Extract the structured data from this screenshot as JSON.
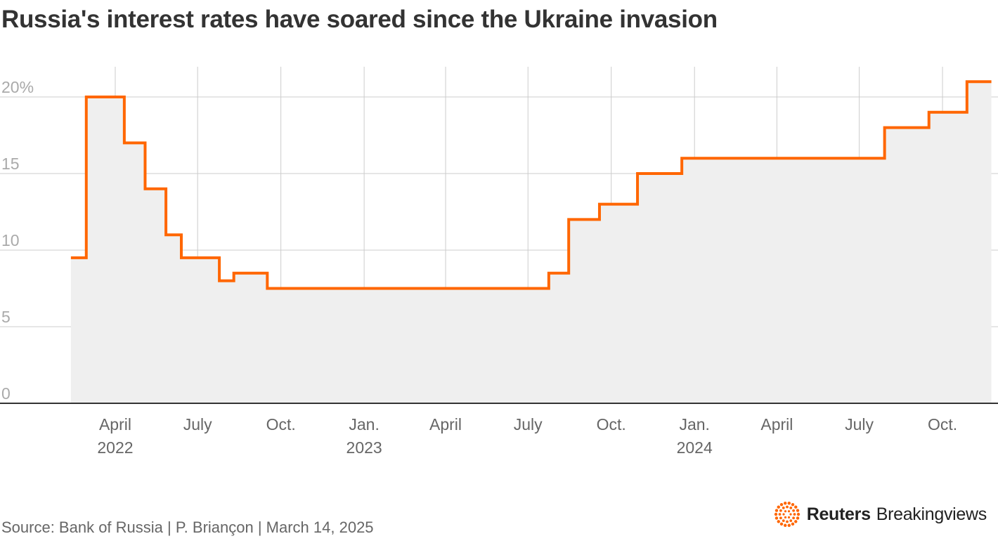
{
  "title": "Russia's interest rates have soared since the Ukraine invasion",
  "source": "Source: Bank of Russia | P. Briançon | March 14, 2025",
  "brand": {
    "name": "Reuters",
    "sub": "Breakingviews",
    "logo_icon": "reuters-dot-ring-icon"
  },
  "colors": {
    "line": "#ff6600",
    "fill": "#efefef",
    "grid": "#cccccc",
    "axis": "#333333"
  },
  "chart_data": {
    "type": "line",
    "step": true,
    "area_fill": true,
    "title": "Russia's interest rates have soared since the Ukraine invasion",
    "xlabel": "",
    "ylabel": "",
    "ylim": [
      0,
      20
    ],
    "xlim": [
      "2022-02-01",
      "2024-11-15"
    ],
    "grid": true,
    "y_ticks": [
      {
        "value": 0,
        "label": "0"
      },
      {
        "value": 5,
        "label": "5"
      },
      {
        "value": 10,
        "label": "10"
      },
      {
        "value": 15,
        "label": "15"
      },
      {
        "value": 20,
        "label": "20%"
      }
    ],
    "x_ticks": [
      {
        "date": "2022-04-01",
        "label": "April",
        "sublabel": "2022"
      },
      {
        "date": "2022-07-01",
        "label": "July",
        "sublabel": ""
      },
      {
        "date": "2022-10-01",
        "label": "Oct.",
        "sublabel": ""
      },
      {
        "date": "2023-01-01",
        "label": "Jan.",
        "sublabel": "2023"
      },
      {
        "date": "2023-04-01",
        "label": "April",
        "sublabel": ""
      },
      {
        "date": "2023-07-01",
        "label": "July",
        "sublabel": ""
      },
      {
        "date": "2023-10-01",
        "label": "Oct.",
        "sublabel": ""
      },
      {
        "date": "2024-01-01",
        "label": "Jan.",
        "sublabel": "2024"
      },
      {
        "date": "2024-04-01",
        "label": "April",
        "sublabel": ""
      },
      {
        "date": "2024-07-01",
        "label": "July",
        "sublabel": ""
      },
      {
        "date": "2024-10-01",
        "label": "Oct.",
        "sublabel": ""
      }
    ],
    "series": [
      {
        "points": [
          {
            "x": "2022-02-11",
            "y": 9.5
          },
          {
            "x": "2022-02-28",
            "y": 20
          },
          {
            "x": "2022-04-11",
            "y": 17
          },
          {
            "x": "2022-05-04",
            "y": 14
          },
          {
            "x": "2022-05-27",
            "y": 11
          },
          {
            "x": "2022-06-13",
            "y": 9.5
          },
          {
            "x": "2022-07-25",
            "y": 8
          },
          {
            "x": "2022-08-10",
            "y": 8.5
          },
          {
            "x": "2022-09-16",
            "y": 7.5
          },
          {
            "x": "2023-07-24",
            "y": 8.5
          },
          {
            "x": "2023-08-15",
            "y": 12
          },
          {
            "x": "2023-09-18",
            "y": 13
          },
          {
            "x": "2023-10-30",
            "y": 15
          },
          {
            "x": "2023-12-18",
            "y": 16
          },
          {
            "x": "2024-07-29",
            "y": 18
          },
          {
            "x": "2024-09-16",
            "y": 19
          },
          {
            "x": "2024-10-28",
            "y": 21
          },
          {
            "x": "2024-11-24",
            "y": 21
          }
        ]
      }
    ]
  }
}
